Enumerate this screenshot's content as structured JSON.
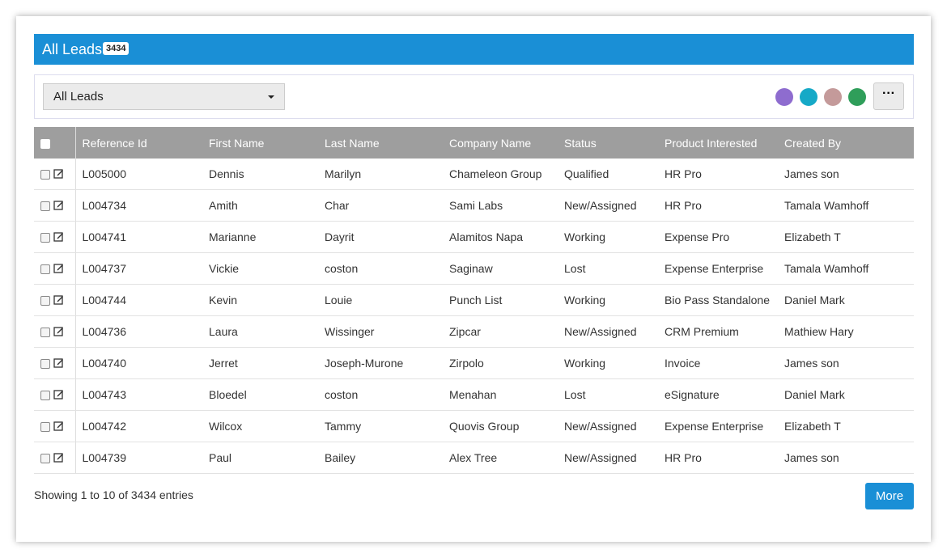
{
  "header": {
    "title": "All Leads",
    "count": "3434"
  },
  "toolbar": {
    "view": "All Leads"
  },
  "table": {
    "columns": [
      "Reference Id",
      "First Name",
      "Last Name",
      "Company Name",
      "Status",
      "Product Interested",
      "Created By"
    ],
    "rows": [
      [
        "L005000",
        "Dennis",
        "Marilyn",
        "Chameleon Group",
        "Qualified",
        "HR Pro",
        "James son"
      ],
      [
        "L004734",
        "Amith",
        "Char",
        "Sami Labs",
        "New/Assigned",
        "HR Pro",
        "Tamala Wamhoff"
      ],
      [
        "L004741",
        "Marianne",
        "Dayrit",
        "Alamitos Napa",
        "Working",
        "Expense Pro",
        "Elizabeth T"
      ],
      [
        "L004737",
        "Vickie",
        "coston",
        "Saginaw",
        "Lost",
        "Expense Enterprise",
        "Tamala Wamhoff"
      ],
      [
        "L004744",
        "Kevin",
        "Louie",
        "Punch List",
        "Working",
        "Bio Pass Standalone",
        "Daniel Mark"
      ],
      [
        "L004736",
        "Laura",
        "Wissinger",
        "Zipcar",
        "New/Assigned",
        "CRM Premium",
        "Mathiew Hary"
      ],
      [
        "L004740",
        "Jerret",
        "Joseph-Murone",
        "Zirpolo",
        "Working",
        "Invoice",
        "James son"
      ],
      [
        "L004743",
        "Bloedel",
        "coston",
        "Menahan",
        "Lost",
        "eSignature",
        "Daniel Mark"
      ],
      [
        "L004742",
        "Wilcox",
        "Tammy",
        "Quovis Group",
        "New/Assigned",
        "Expense Enterprise",
        "Elizabeth T"
      ],
      [
        "L004739",
        "Paul",
        "Bailey",
        "Alex Tree",
        "New/Assigned",
        "HR Pro",
        "James son"
      ]
    ]
  },
  "footer": {
    "info": "Showing 1 to 10 of 3434 entries",
    "button": "More"
  }
}
